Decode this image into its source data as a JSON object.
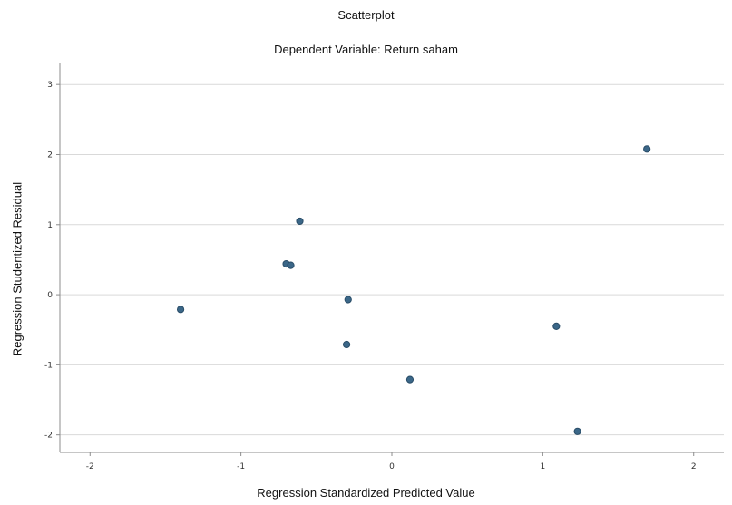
{
  "chart_data": {
    "type": "scatter",
    "title": "Scatterplot",
    "subtitle": "Dependent Variable: Return saham",
    "xlabel": "Regression Standardized Predicted Value",
    "ylabel": "Regression Studentized Residual",
    "xlim": [
      -2.2,
      2.2
    ],
    "ylim": [
      -2.25,
      3.3
    ],
    "x_ticks": [
      -2,
      -1,
      0,
      1,
      2
    ],
    "y_ticks": [
      -2,
      -1,
      0,
      1,
      2,
      3
    ],
    "grid": "horizontal",
    "legend": "none",
    "colors": {
      "point": "#3b6788",
      "point_edge": "#2a4d68",
      "grid": "#d9d9d9",
      "axis": "#8c8c8c"
    },
    "points": [
      {
        "x": -1.4,
        "y": -0.21
      },
      {
        "x": -0.7,
        "y": 0.44
      },
      {
        "x": -0.67,
        "y": 0.42
      },
      {
        "x": -0.61,
        "y": 1.05
      },
      {
        "x": -0.29,
        "y": -0.07
      },
      {
        "x": -0.3,
        "y": -0.71
      },
      {
        "x": 0.12,
        "y": -1.21
      },
      {
        "x": 1.09,
        "y": -0.45
      },
      {
        "x": 1.23,
        "y": -1.95
      },
      {
        "x": 1.69,
        "y": 2.08
      }
    ]
  }
}
